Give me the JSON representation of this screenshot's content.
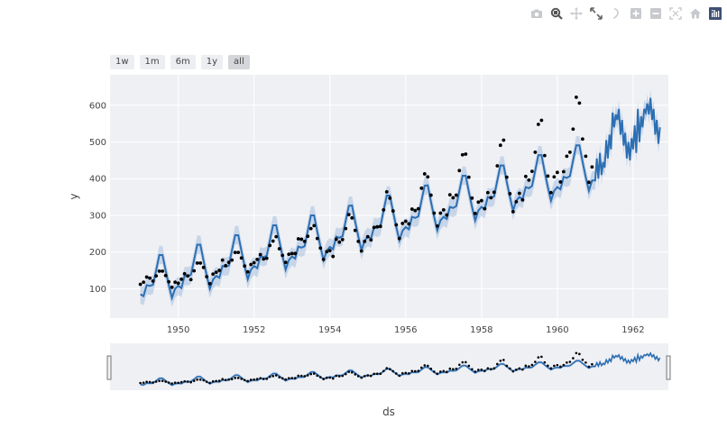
{
  "modebar": {
    "buttons": [
      {
        "name": "camera-icon",
        "title": "Download plot as a png",
        "active": false
      },
      {
        "name": "zoom-icon",
        "title": "Zoom",
        "active": true
      },
      {
        "name": "pan-icon",
        "title": "Pan",
        "active": false
      },
      {
        "name": "autoscale-arrows-icon",
        "title": "Zoom in/out",
        "active": false
      },
      {
        "name": "lasso-icon",
        "title": "Lasso",
        "active": false
      },
      {
        "name": "zoom-in-icon",
        "title": "Zoom in",
        "active": false
      },
      {
        "name": "zoom-out-icon",
        "title": "Zoom out",
        "active": false
      },
      {
        "name": "autoscale-icon",
        "title": "Autoscale",
        "active": false
      },
      {
        "name": "home-icon",
        "title": "Reset axes",
        "active": false
      },
      {
        "name": "plotly-logo-icon",
        "title": "Produced with Plotly",
        "active": false
      }
    ]
  },
  "range_selector": {
    "buttons": [
      {
        "label": "1w",
        "active": false
      },
      {
        "label": "1m",
        "active": false
      },
      {
        "label": "6m",
        "active": false
      },
      {
        "label": "1y",
        "active": false
      },
      {
        "label": "all",
        "active": true
      }
    ]
  },
  "colors": {
    "plot_bg": "#eff0f4",
    "grid": "#ffffff",
    "line": "#2c6fb3",
    "band": "rgba(80,130,200,0.25)",
    "points": "#000000"
  },
  "chart_data": {
    "type": "line",
    "title": "",
    "xlabel": "ds",
    "ylabel": "y",
    "xlim": [
      1948.2,
      1962.93
    ],
    "ylim": [
      20,
      683
    ],
    "x_ticks": [
      1950,
      1952,
      1954,
      1956,
      1958,
      1960,
      1962
    ],
    "y_ticks": [
      100,
      200,
      300,
      400,
      500,
      600
    ],
    "grid": true,
    "legend": "none",
    "rangeslider": true,
    "series": [
      {
        "name": "Actual",
        "mode": "markers",
        "start": 1949.0,
        "step_months": 1,
        "values": [
          112,
          118,
          132,
          129,
          121,
          135,
          148,
          148,
          136,
          119,
          104,
          118,
          115,
          126,
          141,
          135,
          125,
          149,
          170,
          170,
          158,
          133,
          114,
          140,
          145,
          150,
          178,
          163,
          172,
          178,
          199,
          199,
          184,
          162,
          146,
          166,
          171,
          180,
          193,
          181,
          183,
          218,
          230,
          242,
          209,
          191,
          172,
          194,
          196,
          196,
          236,
          235,
          229,
          243,
          264,
          272,
          237,
          211,
          180,
          201,
          204,
          188,
          235,
          227,
          234,
          264,
          302,
          293,
          259,
          229,
          203,
          229,
          242,
          233,
          267,
          269,
          270,
          315,
          364,
          347,
          312,
          274,
          237,
          278,
          284,
          277,
          317,
          313,
          318,
          374,
          413,
          405,
          355,
          306,
          271,
          306,
          315,
          301,
          356,
          348,
          355,
          422,
          465,
          467,
          404,
          347,
          305,
          336,
          340,
          318,
          362,
          348,
          363,
          435,
          491,
          505,
          404,
          359,
          310,
          337,
          360,
          342,
          406,
          396,
          420,
          472,
          548,
          559,
          463,
          407,
          362,
          405,
          417,
          391,
          419,
          461,
          472,
          535,
          622,
          606,
          508,
          461,
          390,
          432
        ]
      },
      {
        "name": "yhat",
        "mode": "lines",
        "start": 1949.0,
        "step_months": 1,
        "values": [
          85,
          80,
          110,
          108,
          111,
          150,
          192,
          192,
          150,
          110,
          75,
          100,
          108,
          102,
          135,
          134,
          138,
          178,
          220,
          220,
          177,
          136,
          100,
          125,
          135,
          130,
          162,
          160,
          163,
          205,
          246,
          246,
          203,
          162,
          126,
          152,
          162,
          156,
          189,
          186,
          190,
          232,
          273,
          273,
          230,
          189,
          152,
          178,
          188,
          182,
          215,
          212,
          216,
          258,
          300,
          300,
          256,
          215,
          178,
          204,
          214,
          208,
          242,
          239,
          243,
          285,
          326,
          327,
          283,
          242,
          205,
          231,
          242,
          236,
          269,
          266,
          270,
          313,
          354,
          354,
          310,
          269,
          232,
          258,
          268,
          262,
          296,
          293,
          297,
          340,
          381,
          382,
          337,
          296,
          259,
          286,
          296,
          290,
          323,
          320,
          325,
          367,
          408,
          408,
          364,
          323,
          286,
          313,
          323,
          317,
          350,
          347,
          352,
          395,
          436,
          436,
          391,
          350,
          313,
          340,
          350,
          344,
          377,
          374,
          380,
          422,
          464,
          464,
          419,
          377,
          340,
          367,
          377,
          371,
          405,
          402,
          407,
          450,
          491,
          491,
          446,
          404,
          367,
          395
        ]
      },
      {
        "name": "forecast_daily",
        "mode": "lines",
        "start": 1961.0,
        "step_months": 0.5,
        "values": [
          395,
          455,
          400,
          470,
          410,
          445,
          430,
          505,
          455,
          520,
          480,
          580,
          540,
          575,
          560,
          590,
          520,
          560,
          490,
          525,
          455,
          500,
          450,
          510,
          480,
          545,
          470,
          590,
          500,
          570,
          540,
          590,
          580,
          605,
          575,
          620,
          560,
          590,
          520,
          560,
          495,
          540
        ]
      }
    ],
    "band_halfwidth": 25
  },
  "axes": {
    "y_title": "y",
    "x_title": "ds"
  }
}
